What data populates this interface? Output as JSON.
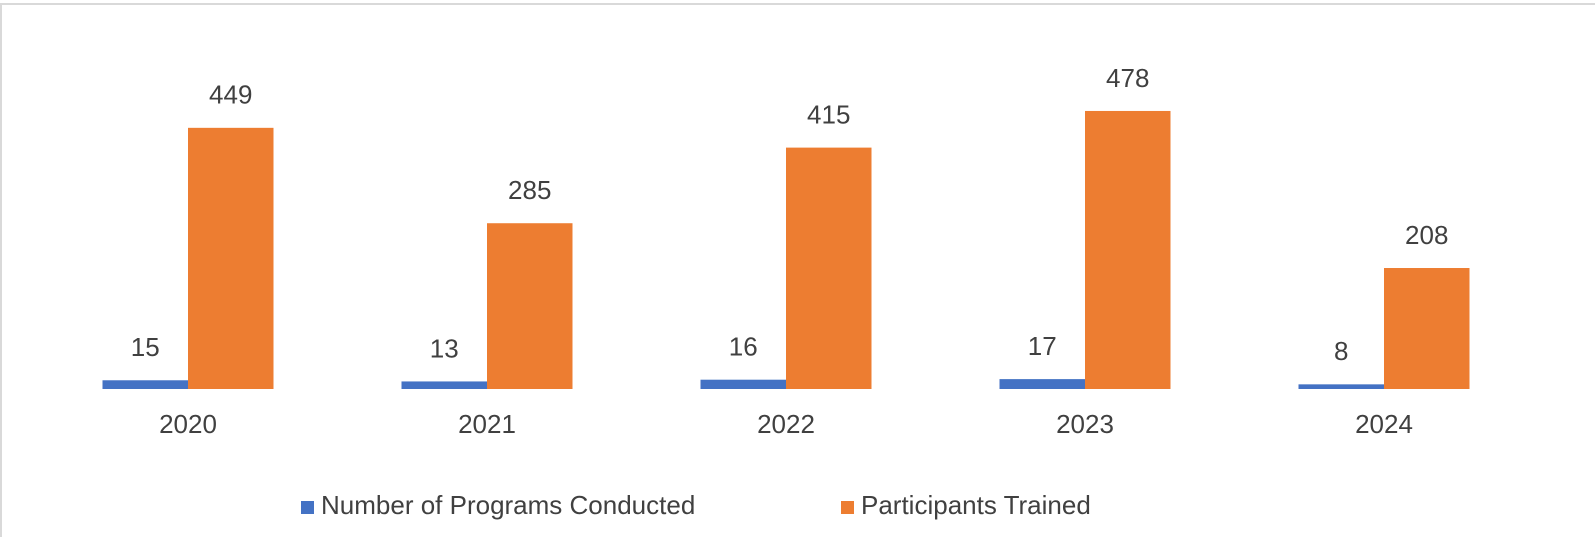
{
  "chart_data": {
    "type": "bar",
    "categories": [
      "2020",
      "2021",
      "2022",
      "2023",
      "2024"
    ],
    "series": [
      {
        "name": "Number of Programs Conducted",
        "color": "#4472c4",
        "values": [
          15,
          13,
          16,
          17,
          8
        ]
      },
      {
        "name": "Participants Trained",
        "color": "#ed7d31",
        "values": [
          449,
          285,
          415,
          478,
          208
        ]
      }
    ],
    "ylim": [
      0,
      600
    ],
    "legend": "bottom"
  }
}
